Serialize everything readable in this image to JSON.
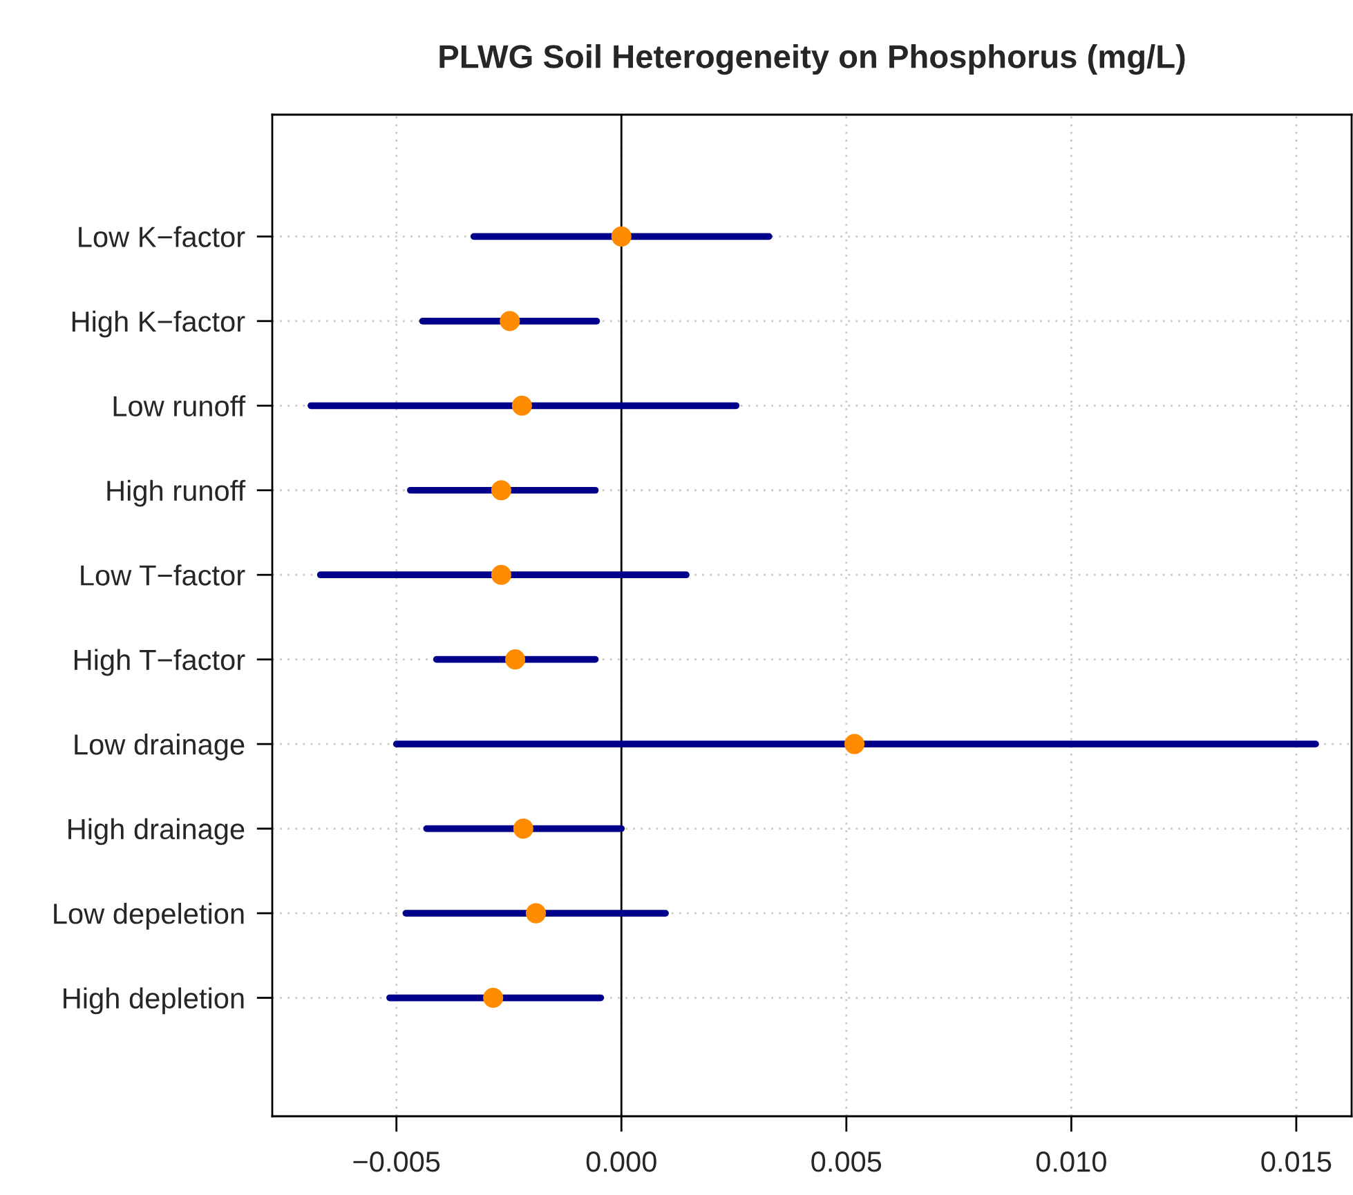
{
  "chart_data": {
    "type": "scatter",
    "orientation": "horizontal",
    "title": "PLWG Soil Heterogeneity on Phosphorus (mg/L)",
    "categories": [
      "Low K−factor",
      "High K−factor",
      "Low runoff",
      "High runoff",
      "Low T−factor",
      "High T−factor",
      "Low drainage",
      "High drainage",
      "Low depeletion",
      "High depletion"
    ],
    "series": [
      {
        "color": "#ff8c00",
        "values": [
          0.0,
          -0.00248,
          -0.00221,
          -0.00267,
          -0.00267,
          -0.00236,
          0.00518,
          -0.00218,
          -0.0019,
          -0.00285
        ],
        "errors": [
          [
            -0.00328,
            0.00328
          ],
          [
            -0.00442,
            -0.00055
          ],
          [
            -0.0069,
            0.00255
          ],
          [
            -0.00469,
            -0.00058
          ],
          [
            -0.00669,
            0.00144
          ],
          [
            -0.00411,
            -0.00058
          ],
          [
            -0.005,
            0.01543
          ],
          [
            -0.00433,
            0.0
          ],
          [
            -0.00479,
            0.00098
          ],
          [
            -0.00515,
            -0.00046
          ]
        ]
      }
    ],
    "xlim": [
      -0.00776,
      0.01623
    ],
    "xticks": [
      {
        "value": -0.005,
        "label": "−0.005"
      },
      {
        "value": 0,
        "label": "0.000"
      },
      {
        "value": 0.005,
        "label": "0.005"
      },
      {
        "value": 0.01,
        "label": "0.010"
      },
      {
        "value": 0.015,
        "label": "0.015"
      }
    ],
    "ref_lines": [
      {
        "axis": "x",
        "value": 0,
        "color": "#000000"
      }
    ],
    "grid": true,
    "marker": "circle"
  }
}
